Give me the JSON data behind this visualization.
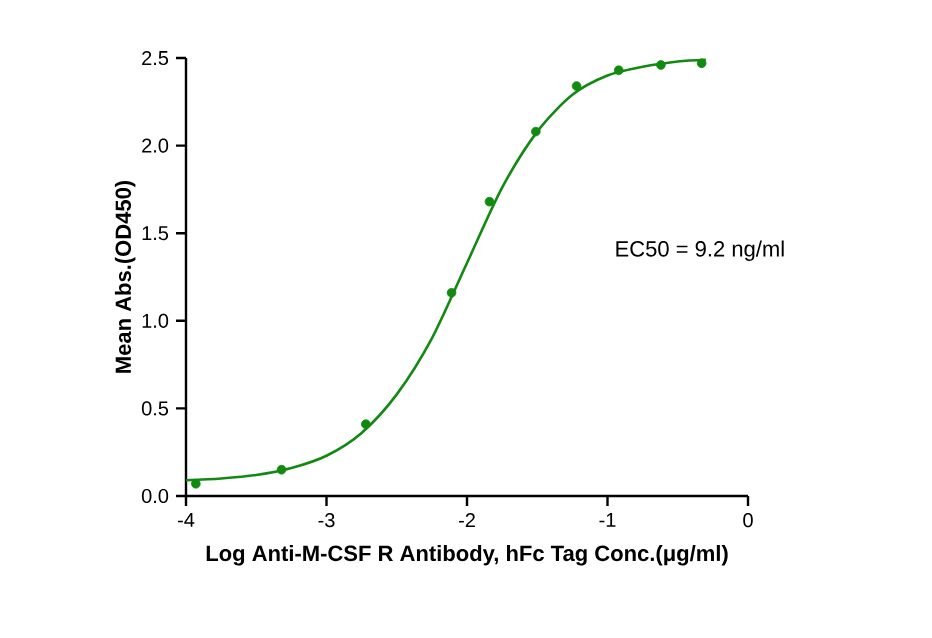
{
  "chart_data": {
    "type": "scatter",
    "xlabel": "Log Anti-M-CSF R Antibody, hFc Tag Conc.(μg/ml)",
    "ylabel": "Mean Abs.(OD450)",
    "annotations": [
      "EC50 = 9.2 ng/ml"
    ],
    "xlim": [
      -4,
      0
    ],
    "xticks": [
      -4,
      -3,
      -2,
      -1,
      0
    ],
    "ylim": [
      0,
      2.5
    ],
    "yticks": [
      {
        "value": 0,
        "label": "0.0"
      },
      {
        "value": 0.5,
        "label": "0.5"
      },
      {
        "value": 1,
        "label": "1.0"
      },
      {
        "value": 1.5,
        "label": "1.5"
      },
      {
        "value": 2,
        "label": "2.0"
      },
      {
        "value": 2.5,
        "label": "2.5"
      }
    ],
    "grid": false,
    "marker": "circle",
    "series": [
      {
        "color": "#128a12",
        "x": [
          -3.93,
          -3.32,
          -2.72,
          -2.11,
          -1.84,
          -1.51,
          -1.22,
          -0.92,
          -0.62,
          -0.33
        ],
        "values": [
          0.07,
          0.15,
          0.41,
          1.16,
          1.68,
          2.08,
          2.34,
          2.43,
          2.46,
          2.47
        ]
      },
      {
        "type": "line",
        "color": "#128a12",
        "line_style": "solid",
        "marker": "none",
        "x": [
          -4,
          -3.75,
          -3.5,
          -3.25,
          -3,
          -2.75,
          -2.5,
          -2.25,
          -2,
          -1.75,
          -1.5,
          -1.25,
          -1,
          -0.75,
          -0.5,
          -0.3
        ],
        "values": [
          0.09,
          0.1,
          0.12,
          0.16,
          0.23,
          0.36,
          0.58,
          0.9,
          1.33,
          1.76,
          2.08,
          2.29,
          2.4,
          2.45,
          2.48,
          2.49
        ]
      }
    ]
  }
}
